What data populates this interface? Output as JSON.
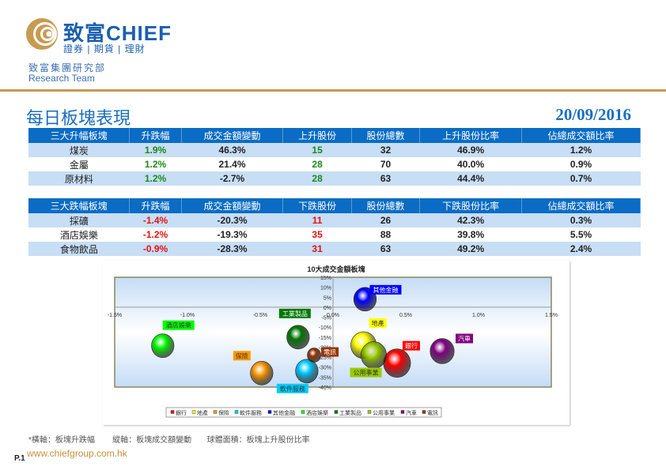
{
  "header": {
    "logo_text": "致富CHIEF",
    "logo_sub": "證券 | 期貨 | 理財",
    "team_cn": "致富集團研究部",
    "team_en": "Research Team"
  },
  "title": "每日板塊表現",
  "date": "20/09/2016",
  "gainers": {
    "headers": [
      "三大升幅板塊",
      "升跌幅",
      "成交金額變動",
      "上升股份",
      "股份總數",
      "上升股份比率",
      "佔總成交額比率"
    ],
    "rows": [
      [
        "煤炭",
        "1.9%",
        "46.3%",
        "15",
        "32",
        "46.9%",
        "1.2%"
      ],
      [
        "金屬",
        "1.2%",
        "21.4%",
        "28",
        "70",
        "40.0%",
        "0.9%"
      ],
      [
        "原材料",
        "1.2%",
        "-2.7%",
        "28",
        "63",
        "44.4%",
        "0.7%"
      ]
    ]
  },
  "losers": {
    "headers": [
      "三大跌幅板塊",
      "升跌幅",
      "成交金額變動",
      "下跌股份",
      "股份總數",
      "下跌股份比率",
      "佔總成交額比率"
    ],
    "rows": [
      [
        "採礦",
        "-1.4%",
        "-20.3%",
        "11",
        "26",
        "42.3%",
        "0.3%"
      ],
      [
        "酒店娛樂",
        "-1.2%",
        "-19.3%",
        "35",
        "88",
        "39.8%",
        "5.5%"
      ],
      [
        "食物飲品",
        "-0.9%",
        "-28.3%",
        "31",
        "63",
        "49.2%",
        "2.4%"
      ]
    ]
  },
  "chart_data": {
    "type": "scatter",
    "title": "10大成交金額板塊",
    "xlim": [
      -1.5,
      1.5
    ],
    "ylim": [
      -40,
      15
    ],
    "x_ticks": [
      "-1.5%",
      "-1.0%",
      "-0.5%",
      "0.0%",
      "0.5%",
      "1.0%",
      "1.5%"
    ],
    "y_ticks": [
      "15%",
      "10%",
      "5%",
      "0%",
      "-5%",
      "-10%",
      "-15%",
      "-20%",
      "-25%",
      "-30%",
      "-35%",
      "-40%"
    ],
    "series": [
      {
        "name": "銀行",
        "x": 0.44,
        "y": -28,
        "size": 18,
        "color": "#ff0000"
      },
      {
        "name": "地產",
        "x": 0.21,
        "y": -19,
        "size": 17,
        "color": "#ffff00"
      },
      {
        "name": "保險",
        "x": -0.49,
        "y": -33,
        "size": 15,
        "color": "#ff9900"
      },
      {
        "name": "軟件服務",
        "x": -0.18,
        "y": -32,
        "size": 15,
        "color": "#00ccff"
      },
      {
        "name": "其他金融",
        "x": 0.22,
        "y": 4,
        "size": 15,
        "color": "#0000ff"
      },
      {
        "name": "酒店娛樂",
        "x": -1.17,
        "y": -19.3,
        "size": 15,
        "color": "#00ff00"
      },
      {
        "name": "工業製品",
        "x": -0.24,
        "y": -15,
        "size": 15,
        "color": "#007700"
      },
      {
        "name": "公用事業",
        "x": 0.28,
        "y": -24,
        "size": 17,
        "color": "#99cc00"
      },
      {
        "name": "汽車",
        "x": 0.75,
        "y": -22,
        "size": 16,
        "color": "#800080"
      },
      {
        "name": "電訊",
        "x": -0.13,
        "y": -24,
        "size": 9,
        "color": "#993300"
      }
    ]
  },
  "footer": {
    "note": "*橫軸：板塊升跌幅        縱軸：板塊成交額變動       球體面積：板塊上升股份比率",
    "page": "P.1",
    "website": "www.chiefgroup.com.hk"
  }
}
